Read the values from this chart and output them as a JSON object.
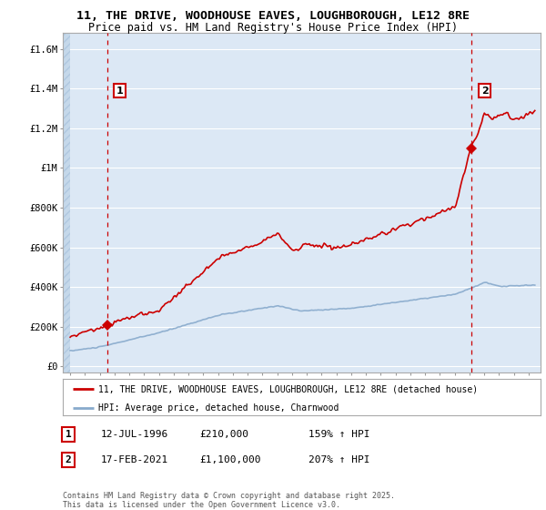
{
  "title_line1": "11, THE DRIVE, WOODHOUSE EAVES, LOUGHBOROUGH, LE12 8RE",
  "title_line2": "Price paid vs. HM Land Registry's House Price Index (HPI)",
  "title_fontsize": 9.5,
  "subtitle_fontsize": 8.5,
  "bg_color": "#ffffff",
  "plot_bg_color": "#dce8f5",
  "grid_color": "#ffffff",
  "sale1_date": 1996.53,
  "sale1_price": 210000,
  "sale2_date": 2021.12,
  "sale2_price": 1100000,
  "sale_color": "#cc0000",
  "hpi_color": "#88aacc",
  "ylabel_ticks": [
    "£0",
    "£200K",
    "£400K",
    "£600K",
    "£800K",
    "£1M",
    "£1.2M",
    "£1.4M",
    "£1.6M"
  ],
  "ytick_vals": [
    0,
    200000,
    400000,
    600000,
    800000,
    1000000,
    1200000,
    1400000,
    1600000
  ],
  "xmin": 1993.5,
  "xmax": 2025.8,
  "ymin": -30000,
  "ymax": 1680000,
  "legend_label1": "11, THE DRIVE, WOODHOUSE EAVES, LOUGHBOROUGH, LE12 8RE (detached house)",
  "legend_label2": "HPI: Average price, detached house, Charnwood",
  "annotation1_label": "1",
  "annotation1_date": "12-JUL-1996",
  "annotation1_price": "£210,000",
  "annotation1_hpi": "159% ↑ HPI",
  "annotation2_label": "2",
  "annotation2_date": "17-FEB-2021",
  "annotation2_price": "£1,100,000",
  "annotation2_hpi": "207% ↑ HPI",
  "footnote": "Contains HM Land Registry data © Crown copyright and database right 2025.\nThis data is licensed under the Open Government Licence v3.0."
}
